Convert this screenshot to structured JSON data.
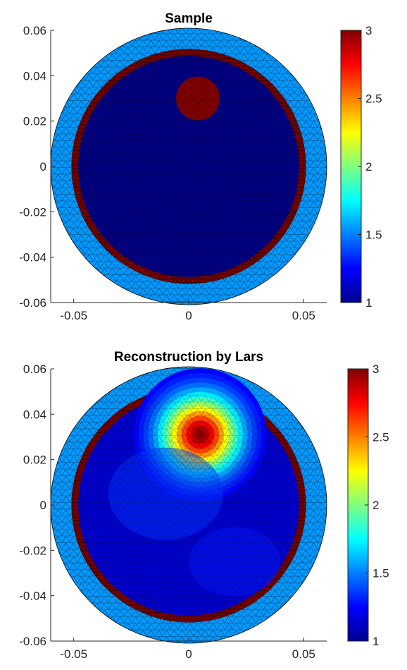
{
  "chart_data": [
    {
      "type": "heatmap",
      "title": "Sample",
      "xlabel": "",
      "ylabel": "",
      "xlim": [
        -0.06,
        0.06
      ],
      "ylim": [
        -0.06,
        0.06
      ],
      "x_ticks": [
        "-0.05",
        "0",
        "0.05"
      ],
      "y_ticks": [
        "0.06",
        "0.04",
        "0.02",
        "0",
        "-0.02",
        "-0.04",
        "-0.06"
      ],
      "colorbar": {
        "min": 1,
        "max": 3,
        "ticks": [
          "3",
          "2.5",
          "2",
          "1.5",
          "1"
        ],
        "colormap": "jet"
      },
      "grid": false,
      "domain_radius": 0.06,
      "regions": [
        {
          "shape": "annulus",
          "inner_radius": 0.051,
          "outer_radius": 0.06,
          "value": 1.55
        },
        {
          "shape": "annulus",
          "inner_radius": 0.048,
          "outer_radius": 0.051,
          "value": 3.0
        },
        {
          "shape": "disc",
          "radius": 0.048,
          "value": 1.0
        },
        {
          "shape": "disc",
          "cx": 0.004,
          "cy": 0.03,
          "radius": 0.0095,
          "value": 3.0
        }
      ]
    },
    {
      "type": "heatmap",
      "title": "Reconstruction by Lars",
      "xlabel": "",
      "ylabel": "",
      "xlim": [
        -0.06,
        0.06
      ],
      "ylim": [
        -0.06,
        0.06
      ],
      "x_ticks": [
        "-0.05",
        "0",
        "0.05"
      ],
      "y_ticks": [
        "0.06",
        "0.04",
        "0.02",
        "0",
        "-0.02",
        "-0.04",
        "-0.06"
      ],
      "colorbar": {
        "min": 1,
        "max": 3,
        "ticks": [
          "3",
          "2.5",
          "2",
          "1.5",
          "1"
        ],
        "colormap": "jet"
      },
      "grid": false,
      "domain_radius": 0.06,
      "regions": [
        {
          "shape": "annulus",
          "inner_radius": 0.051,
          "outer_radius": 0.06,
          "value": 1.55
        },
        {
          "shape": "annulus",
          "inner_radius": 0.048,
          "outer_radius": 0.051,
          "value": 3.0
        },
        {
          "shape": "disc",
          "radius": 0.048,
          "value": 1.15
        },
        {
          "shape": "blob",
          "cx": 0.005,
          "cy": 0.031,
          "peak": 3.0,
          "spread": 0.012
        }
      ]
    }
  ]
}
